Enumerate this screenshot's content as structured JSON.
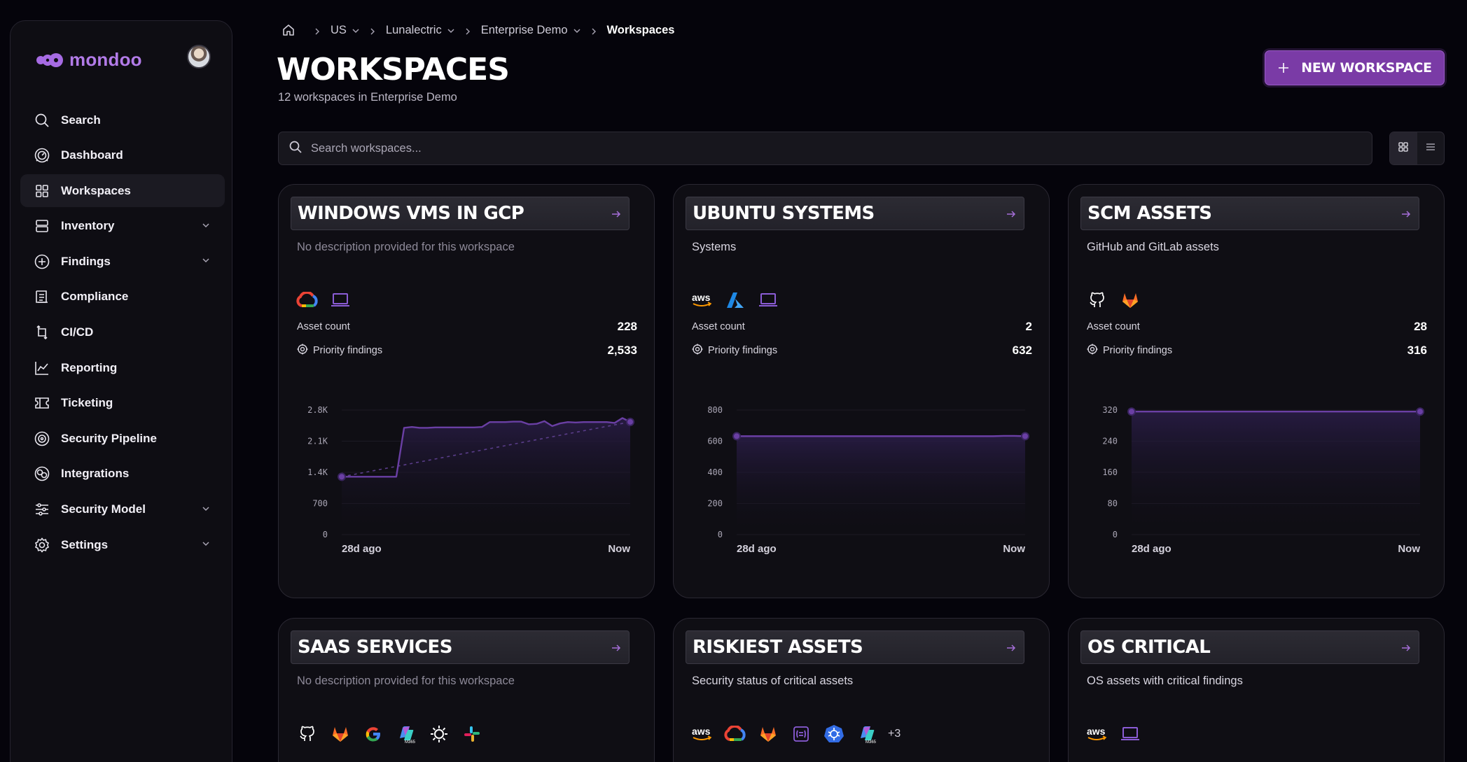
{
  "app": {
    "brand": "mondoo",
    "accent": "#7a3ba6"
  },
  "sidebar": {
    "items": [
      {
        "label": "Search",
        "icon": "search-icon",
        "chevron": false
      },
      {
        "label": "Dashboard",
        "icon": "dashboard-icon",
        "chevron": false
      },
      {
        "label": "Workspaces",
        "icon": "grid-icon",
        "chevron": false,
        "active": true
      },
      {
        "label": "Inventory",
        "icon": "server-icon",
        "chevron": true
      },
      {
        "label": "Findings",
        "icon": "plus-circle-icon",
        "chevron": true
      },
      {
        "label": "Compliance",
        "icon": "checklist-icon",
        "chevron": false
      },
      {
        "label": "CI/CD",
        "icon": "pipeline-icon",
        "chevron": false
      },
      {
        "label": "Reporting",
        "icon": "chart-line-icon",
        "chevron": false
      },
      {
        "label": "Ticketing",
        "icon": "ticket-icon",
        "chevron": false
      },
      {
        "label": "Security Pipeline",
        "icon": "target-icon",
        "chevron": false
      },
      {
        "label": "Integrations",
        "icon": "integrations-icon",
        "chevron": false
      },
      {
        "label": "Security Model",
        "icon": "sliders-icon",
        "chevron": true
      },
      {
        "label": "Settings",
        "icon": "gear-icon",
        "chevron": true
      }
    ]
  },
  "breadcrumb": [
    {
      "label": "US",
      "caret": true
    },
    {
      "label": "Lunalectric",
      "caret": true
    },
    {
      "label": "Enterprise Demo",
      "caret": true
    },
    {
      "label": "Workspaces",
      "caret": false
    }
  ],
  "header": {
    "title": "WORKSPACES",
    "subtitle": "12 workspaces in Enterprise Demo",
    "new_button": "NEW WORKSPACE"
  },
  "search": {
    "placeholder": "Search workspaces..."
  },
  "cards": [
    {
      "title": "WINDOWS VMS IN GCP",
      "description": "No description provided for this workspace",
      "description_muted": true,
      "platform_icons": [
        "gcp-icon",
        "laptop-icon"
      ],
      "asset_count_label": "Asset count",
      "asset_count": "228",
      "findings_label": "Priority findings",
      "findings": "2,533",
      "chart_data": {
        "type": "line",
        "x_start_label": "28d ago",
        "x_end_label": "Now",
        "yticks": [
          "0",
          "700",
          "1.4K",
          "2.1K",
          "2.8K"
        ],
        "ylim": [
          0,
          2800
        ],
        "trend_line": true,
        "values": [
          1300,
          1300,
          1300,
          1300,
          1300,
          1300,
          1300,
          1300,
          2400,
          2420,
          2400,
          2400,
          2410,
          2410,
          2410,
          2410,
          2410,
          2410,
          2420,
          2530,
          2530,
          2530,
          2540,
          2540,
          2480,
          2490,
          2550,
          2440,
          2500,
          2530,
          2520,
          2530,
          2530,
          2530,
          2530,
          2510,
          2620,
          2533
        ]
      }
    },
    {
      "title": "UBUNTU SYSTEMS",
      "description": "Systems",
      "description_muted": false,
      "platform_icons": [
        "aws-icon",
        "azure-icon",
        "laptop-icon"
      ],
      "asset_count_label": "Asset count",
      "asset_count": "2",
      "findings_label": "Priority findings",
      "findings": "632",
      "chart_data": {
        "type": "line",
        "x_start_label": "28d ago",
        "x_end_label": "Now",
        "yticks": [
          "0",
          "200",
          "400",
          "600",
          "800"
        ],
        "ylim": [
          0,
          800
        ],
        "trend_line": false,
        "values": [
          632,
          632,
          632,
          632,
          632,
          632,
          632,
          632,
          632,
          632,
          632,
          632,
          632,
          632,
          632,
          632,
          632,
          632,
          632,
          632,
          632,
          632,
          632,
          632,
          632,
          634,
          634,
          632
        ]
      }
    },
    {
      "title": "SCM ASSETS",
      "description": "GitHub and GitLab assets",
      "description_muted": false,
      "platform_icons": [
        "github-icon",
        "gitlab-icon"
      ],
      "asset_count_label": "Asset count",
      "asset_count": "28",
      "findings_label": "Priority findings",
      "findings": "316",
      "chart_data": {
        "type": "line",
        "x_start_label": "28d ago",
        "x_end_label": "Now",
        "yticks": [
          "0",
          "80",
          "160",
          "240",
          "320"
        ],
        "ylim": [
          0,
          320
        ],
        "trend_line": false,
        "values": [
          316,
          316,
          316,
          316,
          316,
          316,
          316,
          316,
          316,
          316,
          316,
          316,
          316,
          316,
          316,
          316,
          316,
          316,
          316,
          316,
          316,
          316,
          316,
          316,
          316,
          316,
          316,
          316
        ]
      }
    },
    {
      "title": "SAAS SERVICES",
      "description": "No description provided for this workspace",
      "description_muted": true,
      "platform_icons": [
        "github-icon",
        "gitlab-icon",
        "google-icon",
        "m365-icon",
        "okta-icon",
        "slack-icon"
      ],
      "more": ""
    },
    {
      "title": "RISKIEST ASSETS",
      "description": "Security status of critical assets",
      "description_muted": false,
      "platform_icons": [
        "aws-icon",
        "gcp-icon",
        "gitlab-icon",
        "terraform-icon",
        "kubernetes-icon",
        "m365-icon"
      ],
      "more": "+3"
    },
    {
      "title": "OS CRITICAL",
      "description": "OS assets with critical findings",
      "description_muted": false,
      "platform_icons": [
        "aws-icon",
        "laptop-icon"
      ],
      "more": ""
    }
  ]
}
